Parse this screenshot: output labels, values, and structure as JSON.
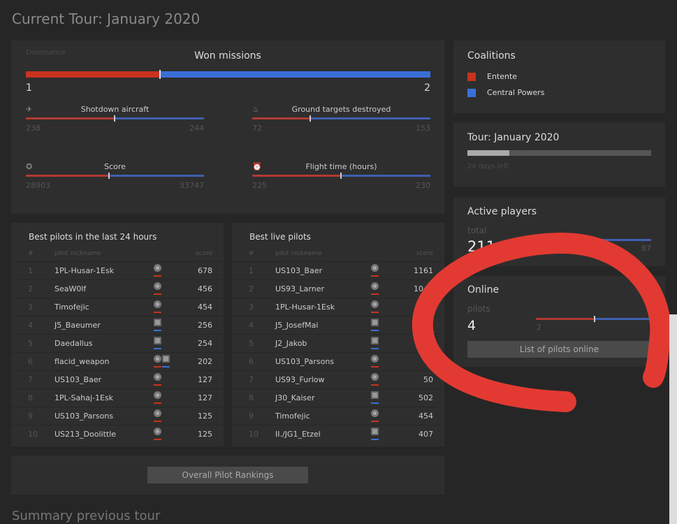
{
  "page_title": "Current Tour: January 2020",
  "dominance": {
    "label": "Dominance",
    "won_missions": {
      "title": "Won missions",
      "entente": 1,
      "central": 2
    },
    "stats": [
      {
        "label": "Shotdown aircraft",
        "icon": "plane-icon",
        "entente": 238,
        "central": 244
      },
      {
        "label": "Ground targets destroyed",
        "icon": "fire-icon",
        "entente": 72,
        "central": 153
      },
      {
        "label": "Score",
        "icon": "medal-icon",
        "entente": 28903,
        "central": 33747
      },
      {
        "label": "Flight time (hours)",
        "icon": "clock-icon",
        "entente": 225,
        "central": 230
      }
    ]
  },
  "coalitions": {
    "title": "Coalitions",
    "items": [
      {
        "name": "Entente",
        "color": "#c8321f"
      },
      {
        "name": "Central Powers",
        "color": "#3a6fd8"
      }
    ]
  },
  "tour": {
    "title": "Tour: January 2020",
    "days_left": "24 days left",
    "progress": 0.23
  },
  "active_players": {
    "title": "Active players",
    "sub": "total",
    "total": "211",
    "right": "87"
  },
  "online": {
    "title": "Online",
    "sub": "pilots",
    "count": "4",
    "left": "2",
    "button": "List of pilots online"
  },
  "best24": {
    "title": "Best pilots in the last 24 hours",
    "headers": [
      "#",
      "pilot nickname",
      "score"
    ],
    "rows": [
      {
        "n": "1",
        "name": "1PL-Husar-1Esk",
        "c": "entente",
        "score": "678"
      },
      {
        "n": "2",
        "name": "SeaW0lf",
        "c": "entente",
        "score": "456"
      },
      {
        "n": "3",
        "name": "Timofejic",
        "c": "entente",
        "score": "454"
      },
      {
        "n": "4",
        "name": "J5_Baeumer",
        "c": "central",
        "score": "256"
      },
      {
        "n": "5",
        "name": "Daedallus",
        "c": "central",
        "score": "254"
      },
      {
        "n": "6",
        "name": "flacid_weapon",
        "c": "both",
        "score": "202"
      },
      {
        "n": "7",
        "name": "US103_Baer",
        "c": "entente",
        "score": "127"
      },
      {
        "n": "8",
        "name": "1PL-Sahaj-1Esk",
        "c": "entente",
        "score": "127"
      },
      {
        "n": "9",
        "name": "US103_Parsons",
        "c": "entente",
        "score": "125"
      },
      {
        "n": "10",
        "name": "US213_Doolittle",
        "c": "entente",
        "score": "125"
      }
    ]
  },
  "bestlive": {
    "title": "Best live pilots",
    "headers": [
      "#",
      "pilot nickname",
      "score"
    ],
    "rows": [
      {
        "n": "1",
        "name": "US103_Baer",
        "c": "entente",
        "score": "1161"
      },
      {
        "n": "2",
        "name": "US93_Larner",
        "c": "entente",
        "score": "1044"
      },
      {
        "n": "3",
        "name": "1PL-Husar-1Esk",
        "c": "entente",
        "score": "8"
      },
      {
        "n": "4",
        "name": "J5_JosefMai",
        "c": "central",
        "score": ""
      },
      {
        "n": "5",
        "name": "J2_Jakob",
        "c": "central",
        "score": ""
      },
      {
        "n": "6",
        "name": "US103_Parsons",
        "c": "entente",
        "score": ""
      },
      {
        "n": "7",
        "name": "US93_Furlow",
        "c": "entente",
        "score": "50"
      },
      {
        "n": "8",
        "name": "J30_Kaiser",
        "c": "central",
        "score": "502"
      },
      {
        "n": "9",
        "name": "Timofejic",
        "c": "entente",
        "score": "454"
      },
      {
        "n": "10",
        "name": "II./JG1_Etzel",
        "c": "central",
        "score": "407"
      }
    ]
  },
  "overall_button": "Overall Pilot Rankings",
  "summary_title": "Summary previous tour"
}
